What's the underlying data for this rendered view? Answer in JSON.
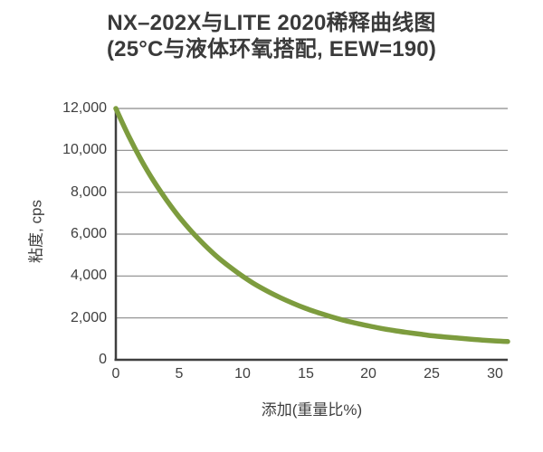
{
  "title": {
    "line1": "NX–202X与LITE 2020稀释曲线图",
    "line2": "(25°C与液体环氧搭配, EEW=190)"
  },
  "axes": {
    "y_label": "粘度, cps",
    "x_label": "添加(重量比%)",
    "y_tick_labels": [
      "12,000",
      "10,000",
      "8,000",
      "6,000",
      "4,000",
      "2,000",
      "0"
    ],
    "x_tick_labels": [
      "0",
      "5",
      "10",
      "15",
      "20",
      "25",
      "30"
    ]
  },
  "colors": {
    "curve": "#7d9c3e",
    "grid": "#8a8a8a",
    "axis": "#3f3f3f",
    "text": "#3a3a3a"
  },
  "chart_data": {
    "type": "line",
    "title": "NX–202X与LITE 2020稀释曲线图 (25°C与液体环氧搭配, EEW=190)",
    "xlabel": "添加(重量比%)",
    "ylabel": "粘度, cps",
    "xlim": [
      0,
      31
    ],
    "ylim": [
      0,
      12000
    ],
    "x_ticks": [
      0,
      5,
      10,
      15,
      20,
      25,
      30
    ],
    "y_ticks": [
      0,
      2000,
      4000,
      6000,
      8000,
      10000,
      12000
    ],
    "grid": "horizontal",
    "legend": "none",
    "series": [
      {
        "name": "NX–202X",
        "x": [
          0,
          1,
          2,
          3,
          4,
          5,
          6,
          7,
          8,
          9,
          10,
          11,
          12,
          13,
          14,
          15,
          16,
          17,
          18,
          19,
          20,
          21,
          22,
          23,
          24,
          25,
          26,
          27,
          28,
          29,
          30,
          31
        ],
        "y": [
          12000,
          10700,
          9550,
          8530,
          7630,
          6830,
          6120,
          5490,
          4930,
          4440,
          4000,
          3610,
          3270,
          2970,
          2700,
          2460,
          2250,
          2060,
          1890,
          1750,
          1620,
          1500,
          1400,
          1310,
          1230,
          1150,
          1090,
          1040,
          990,
          940,
          900,
          870
        ]
      }
    ]
  }
}
